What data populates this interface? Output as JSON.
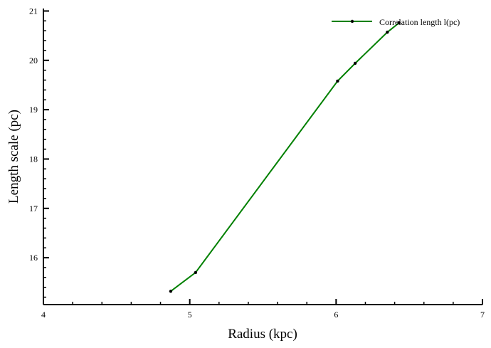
{
  "chart_data": {
    "type": "line",
    "xlabel": "Radius (kpc)",
    "ylabel": "Length scale (pc)",
    "xlim": [
      4,
      7
    ],
    "ylim": [
      15.05,
      21.05
    ],
    "x_ticks": [
      "4",
      "5",
      "6",
      "7"
    ],
    "y_ticks": [
      "16",
      "17",
      "18",
      "19",
      "20",
      "21"
    ],
    "x_tick_values": [
      4,
      5,
      6,
      7
    ],
    "y_tick_values": [
      16,
      17,
      18,
      19,
      20,
      21
    ],
    "grid": false,
    "legend_position": "top-right",
    "series": [
      {
        "name": "Correlation length l(pc)",
        "color": "#008000",
        "marker_color": "#000000",
        "x": [
          4.87,
          5.04,
          6.01,
          6.13,
          6.35,
          6.43
        ],
        "y": [
          15.32,
          15.7,
          19.58,
          19.94,
          20.57,
          20.76
        ]
      }
    ]
  }
}
